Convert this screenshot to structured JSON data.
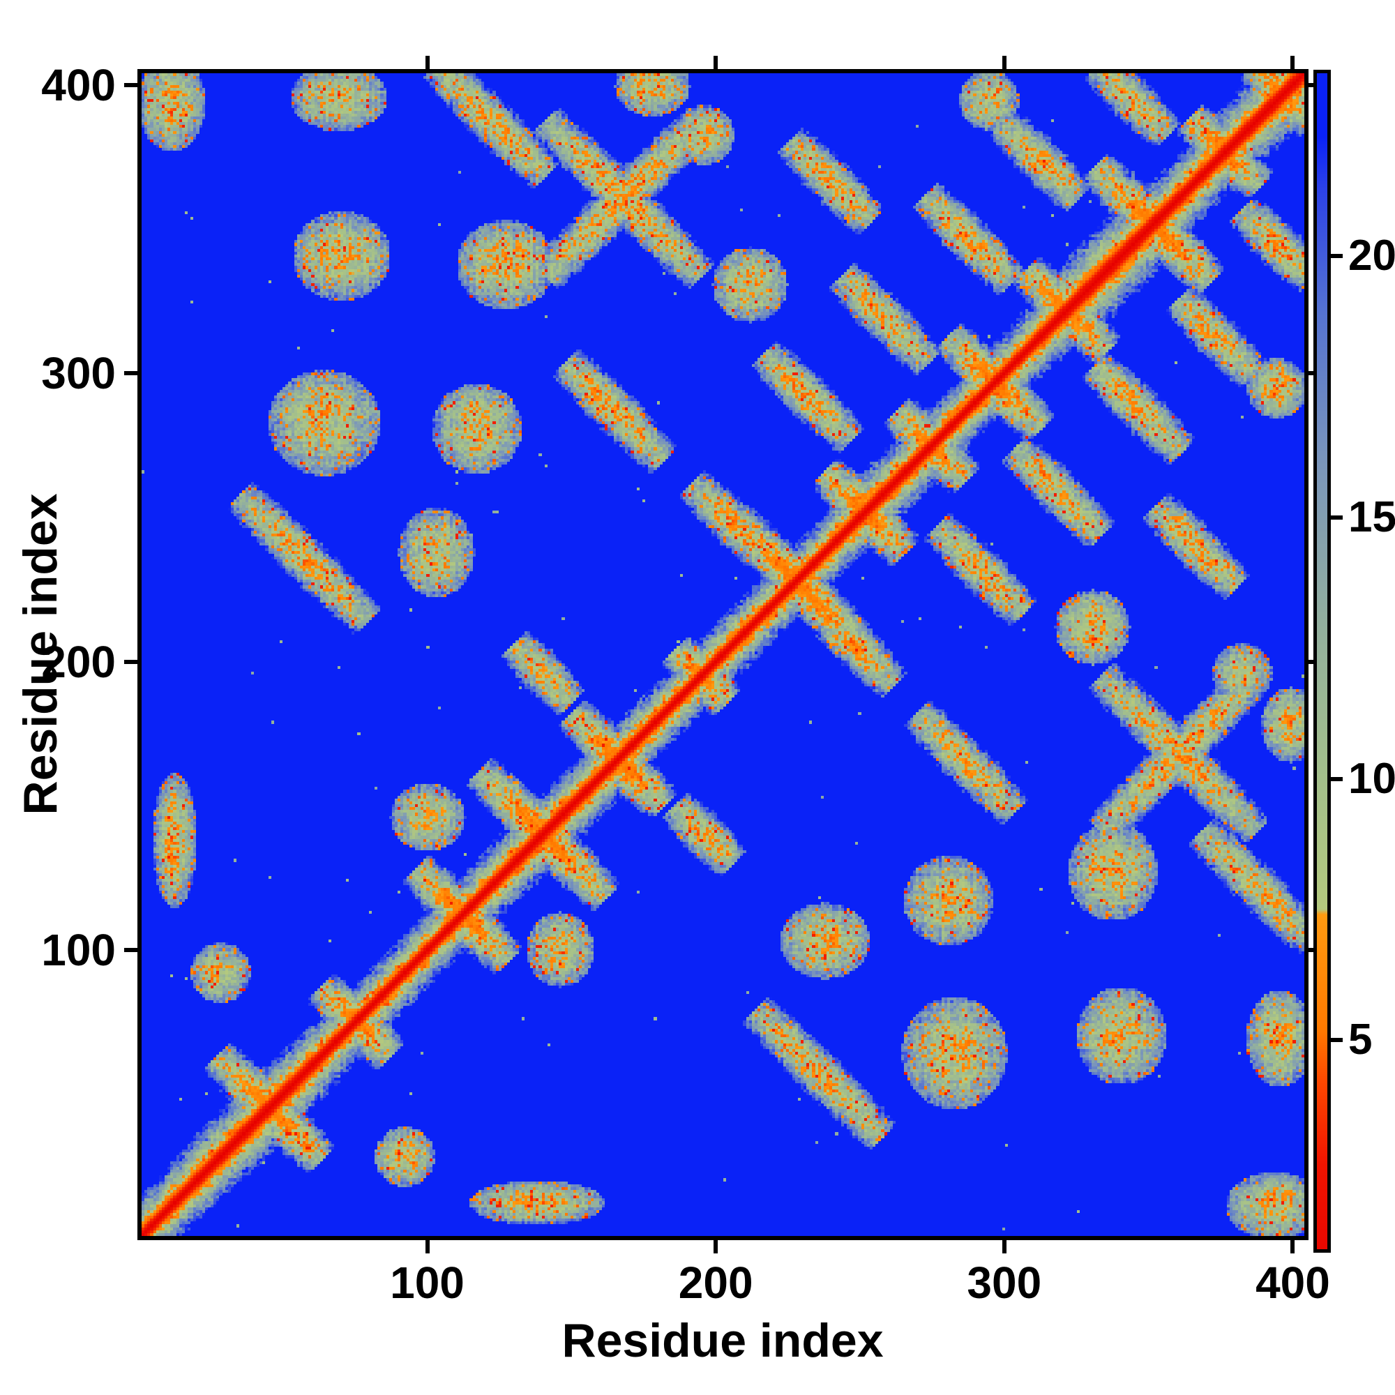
{
  "chart_data": {
    "type": "heatmap",
    "title": "",
    "xlabel": "Residue index",
    "ylabel": "Residue index",
    "x_ticks": [
      100,
      200,
      300,
      400
    ],
    "y_ticks": [
      100,
      200,
      300,
      400
    ],
    "x_range": [
      1,
      404
    ],
    "y_range": [
      1,
      404
    ],
    "n_residues": 404,
    "grid": "off",
    "legend": "none",
    "background_value_color": "#0a22f7",
    "colorbar": {
      "position": "right",
      "orientation": "vertical",
      "ticks": [
        5,
        10,
        15,
        20
      ],
      "vmin": 1.0,
      "vmax": 23.5
    },
    "colormap": {
      "name": "distance-map (red=near, blue=far)",
      "stops": [
        [
          0.0,
          "#e60000"
        ],
        [
          2.6,
          "#f01400"
        ],
        [
          4.2,
          "#fd4800"
        ],
        [
          5.2,
          "#ff7a00"
        ],
        [
          7.4,
          "#ff9a10"
        ],
        [
          7.5,
          "#b4c97e"
        ],
        [
          10.0,
          "#a4c08b"
        ],
        [
          13.0,
          "#92af9e"
        ],
        [
          16.0,
          "#7b96ba"
        ],
        [
          19.0,
          "#5472d2"
        ],
        [
          21.3,
          "#2c42e8"
        ],
        [
          22.3,
          "#0a22f7"
        ],
        [
          23.5,
          "#0a22f7"
        ]
      ]
    },
    "data_note": "Symmetric residue-residue distance matrix (~404 residues). Red main diagonal with orange flanks and pale-green halo; off-diagonal contact clusters reconstructed approximately as features below.",
    "matrix_model": {
      "diagonal_rate_per_residue": 1.7,
      "halo_width_bumps": [
        {
          "c": 40,
          "amp": 1.25,
          "s": 18
        },
        {
          "c": 140,
          "amp": 1.15,
          "s": 14
        },
        {
          "c": 262,
          "amp": 1.12,
          "s": 12
        },
        {
          "c": 338,
          "amp": 1.4,
          "s": 16
        },
        {
          "c": 392,
          "amp": 1.3,
          "s": 14
        }
      ],
      "x_motifs_on_diagonal": [
        {
          "c": 45,
          "L": 18
        },
        {
          "c": 75,
          "L": 12
        },
        {
          "c": 112,
          "L": 16
        },
        {
          "c": 140,
          "L": 22
        },
        {
          "c": 166,
          "L": 16
        },
        {
          "c": 195,
          "L": 9
        },
        {
          "c": 228,
          "L": 24
        },
        {
          "c": 252,
          "L": 14
        },
        {
          "c": 275,
          "L": 12
        },
        {
          "c": 297,
          "L": 16
        },
        {
          "c": 322,
          "L": 14
        },
        {
          "c": 352,
          "L": 20
        },
        {
          "c": 377,
          "L": 12
        },
        {
          "c": 397,
          "L": 10
        }
      ],
      "contacts": [
        {
          "t": "blob",
          "i": 11,
          "j": 394,
          "ri": 9,
          "rj": 13
        },
        {
          "t": "blob",
          "i": 69,
          "j": 396,
          "ri": 13,
          "rj": 9
        },
        {
          "t": "anti",
          "i": 122,
          "j": 388,
          "L": 19
        },
        {
          "t": "blob",
          "i": 178,
          "j": 400,
          "ri": 10,
          "rj": 8
        },
        {
          "t": "anti",
          "i": 168,
          "j": 361,
          "L": 27
        },
        {
          "t": "diag",
          "i": 168,
          "j": 361,
          "L": 27
        },
        {
          "t": "blob",
          "i": 70,
          "j": 341,
          "ri": 13,
          "rj": 12
        },
        {
          "t": "blob",
          "i": 127,
          "j": 338,
          "ri": 13,
          "rj": 12
        },
        {
          "t": "blob",
          "i": 64,
          "j": 283,
          "ri": 15,
          "rj": 14
        },
        {
          "t": "blob",
          "i": 117,
          "j": 281,
          "ri": 12,
          "rj": 12
        },
        {
          "t": "anti",
          "i": 165,
          "j": 287,
          "L": 17
        },
        {
          "t": "anti",
          "i": 57,
          "j": 236,
          "L": 22
        },
        {
          "t": "blob",
          "i": 103,
          "j": 238,
          "ri": 10,
          "rj": 12
        },
        {
          "t": "anti",
          "i": 205,
          "j": 249,
          "L": 13
        },
        {
          "t": "anti",
          "i": 232,
          "j": 292,
          "L": 15
        },
        {
          "t": "anti",
          "i": 259,
          "j": 319,
          "L": 15
        },
        {
          "t": "anti",
          "i": 288,
          "j": 347,
          "L": 15
        },
        {
          "t": "anti",
          "i": 313,
          "j": 374,
          "L": 13
        },
        {
          "t": "blob",
          "i": 212,
          "j": 331,
          "ri": 10,
          "rj": 10
        },
        {
          "t": "anti",
          "i": 240,
          "j": 367,
          "L": 14
        },
        {
          "t": "anti",
          "i": 345,
          "j": 395,
          "L": 12
        },
        {
          "t": "blob",
          "i": 28,
          "j": 92,
          "ri": 8,
          "rj": 8
        },
        {
          "t": "blob",
          "i": 12,
          "j": 138,
          "ri": 6,
          "rj": 18
        },
        {
          "t": "blob",
          "i": 100,
          "j": 146,
          "ri": 10,
          "rj": 9
        },
        {
          "t": "blob",
          "i": 196,
          "j": 383,
          "ri": 8,
          "rj": 8
        },
        {
          "t": "anti",
          "i": 140,
          "j": 196,
          "L": 10
        },
        {
          "t": "blob",
          "i": 295,
          "j": 395,
          "ri": 8,
          "rj": 8
        }
      ]
    }
  },
  "axis_color": "#000000",
  "text_color": "#000000"
}
